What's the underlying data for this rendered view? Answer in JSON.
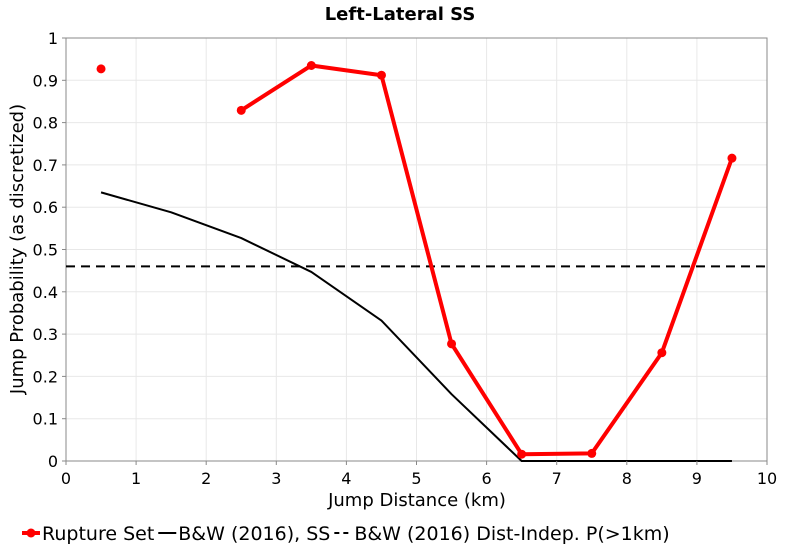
{
  "chart_data": {
    "type": "line",
    "title": "Left-Lateral SS",
    "xlabel": "Jump Distance (km)",
    "ylabel": "Jump Probability (as discretized)",
    "xlim": [
      0,
      10
    ],
    "ylim": [
      0,
      1
    ],
    "xticks": [
      "0",
      "1",
      "2",
      "3",
      "4",
      "5",
      "6",
      "7",
      "8",
      "9",
      "10"
    ],
    "yticks": [
      "0",
      "0.1",
      "0.2",
      "0.3",
      "0.4",
      "0.5",
      "0.6",
      "0.7",
      "0.8",
      "0.9",
      "1"
    ],
    "grid": true,
    "legend_position": "bottom",
    "series": [
      {
        "name": "Rupture Set",
        "style": "solid-markers",
        "color": "#ff0000",
        "segments": [
          [
            {
              "x": 0.5,
              "y": 0.927
            }
          ],
          [
            {
              "x": 2.5,
              "y": 0.829
            },
            {
              "x": 3.5,
              "y": 0.935
            },
            {
              "x": 4.5,
              "y": 0.912
            },
            {
              "x": 5.5,
              "y": 0.277
            },
            {
              "x": 6.5,
              "y": 0.016
            },
            {
              "x": 7.5,
              "y": 0.018
            },
            {
              "x": 8.5,
              "y": 0.256
            },
            {
              "x": 9.5,
              "y": 0.716
            }
          ]
        ]
      },
      {
        "name": "B&W (2016), SS",
        "style": "solid",
        "color": "#000000",
        "segments": [
          [
            {
              "x": 0.5,
              "y": 0.635
            },
            {
              "x": 1.5,
              "y": 0.588
            },
            {
              "x": 2.5,
              "y": 0.527
            },
            {
              "x": 3.5,
              "y": 0.447
            },
            {
              "x": 4.5,
              "y": 0.332
            },
            {
              "x": 5.5,
              "y": 0.158
            },
            {
              "x": 6.5,
              "y": 0.0
            },
            {
              "x": 7.5,
              "y": 0.0
            },
            {
              "x": 8.5,
              "y": 0.0
            },
            {
              "x": 9.5,
              "y": 0.0
            }
          ]
        ]
      },
      {
        "name": "B&W (2016) Dist-Indep. P(>1km)",
        "style": "dashed",
        "color": "#000000",
        "segments": [
          [
            {
              "x": 0,
              "y": 0.46
            },
            {
              "x": 10,
              "y": 0.46
            }
          ]
        ]
      }
    ],
    "legend": [
      {
        "label": "Rupture Set",
        "style": "solid-markers",
        "color": "#ff0000"
      },
      {
        "label": "B&W (2016), SS",
        "style": "solid",
        "color": "#000000"
      },
      {
        "label": "B&W (2016) Dist-Indep. P(>1km)",
        "style": "dashed",
        "color": "#000000"
      }
    ]
  }
}
